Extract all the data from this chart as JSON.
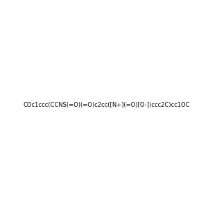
{
  "smiles": "COc1ccc(CCNS(=O)(=O)c2cc([N+](=O)[O-])ccc2C)cc1OC",
  "image_size": 300,
  "background_color": "#e8e8e8",
  "title": ""
}
